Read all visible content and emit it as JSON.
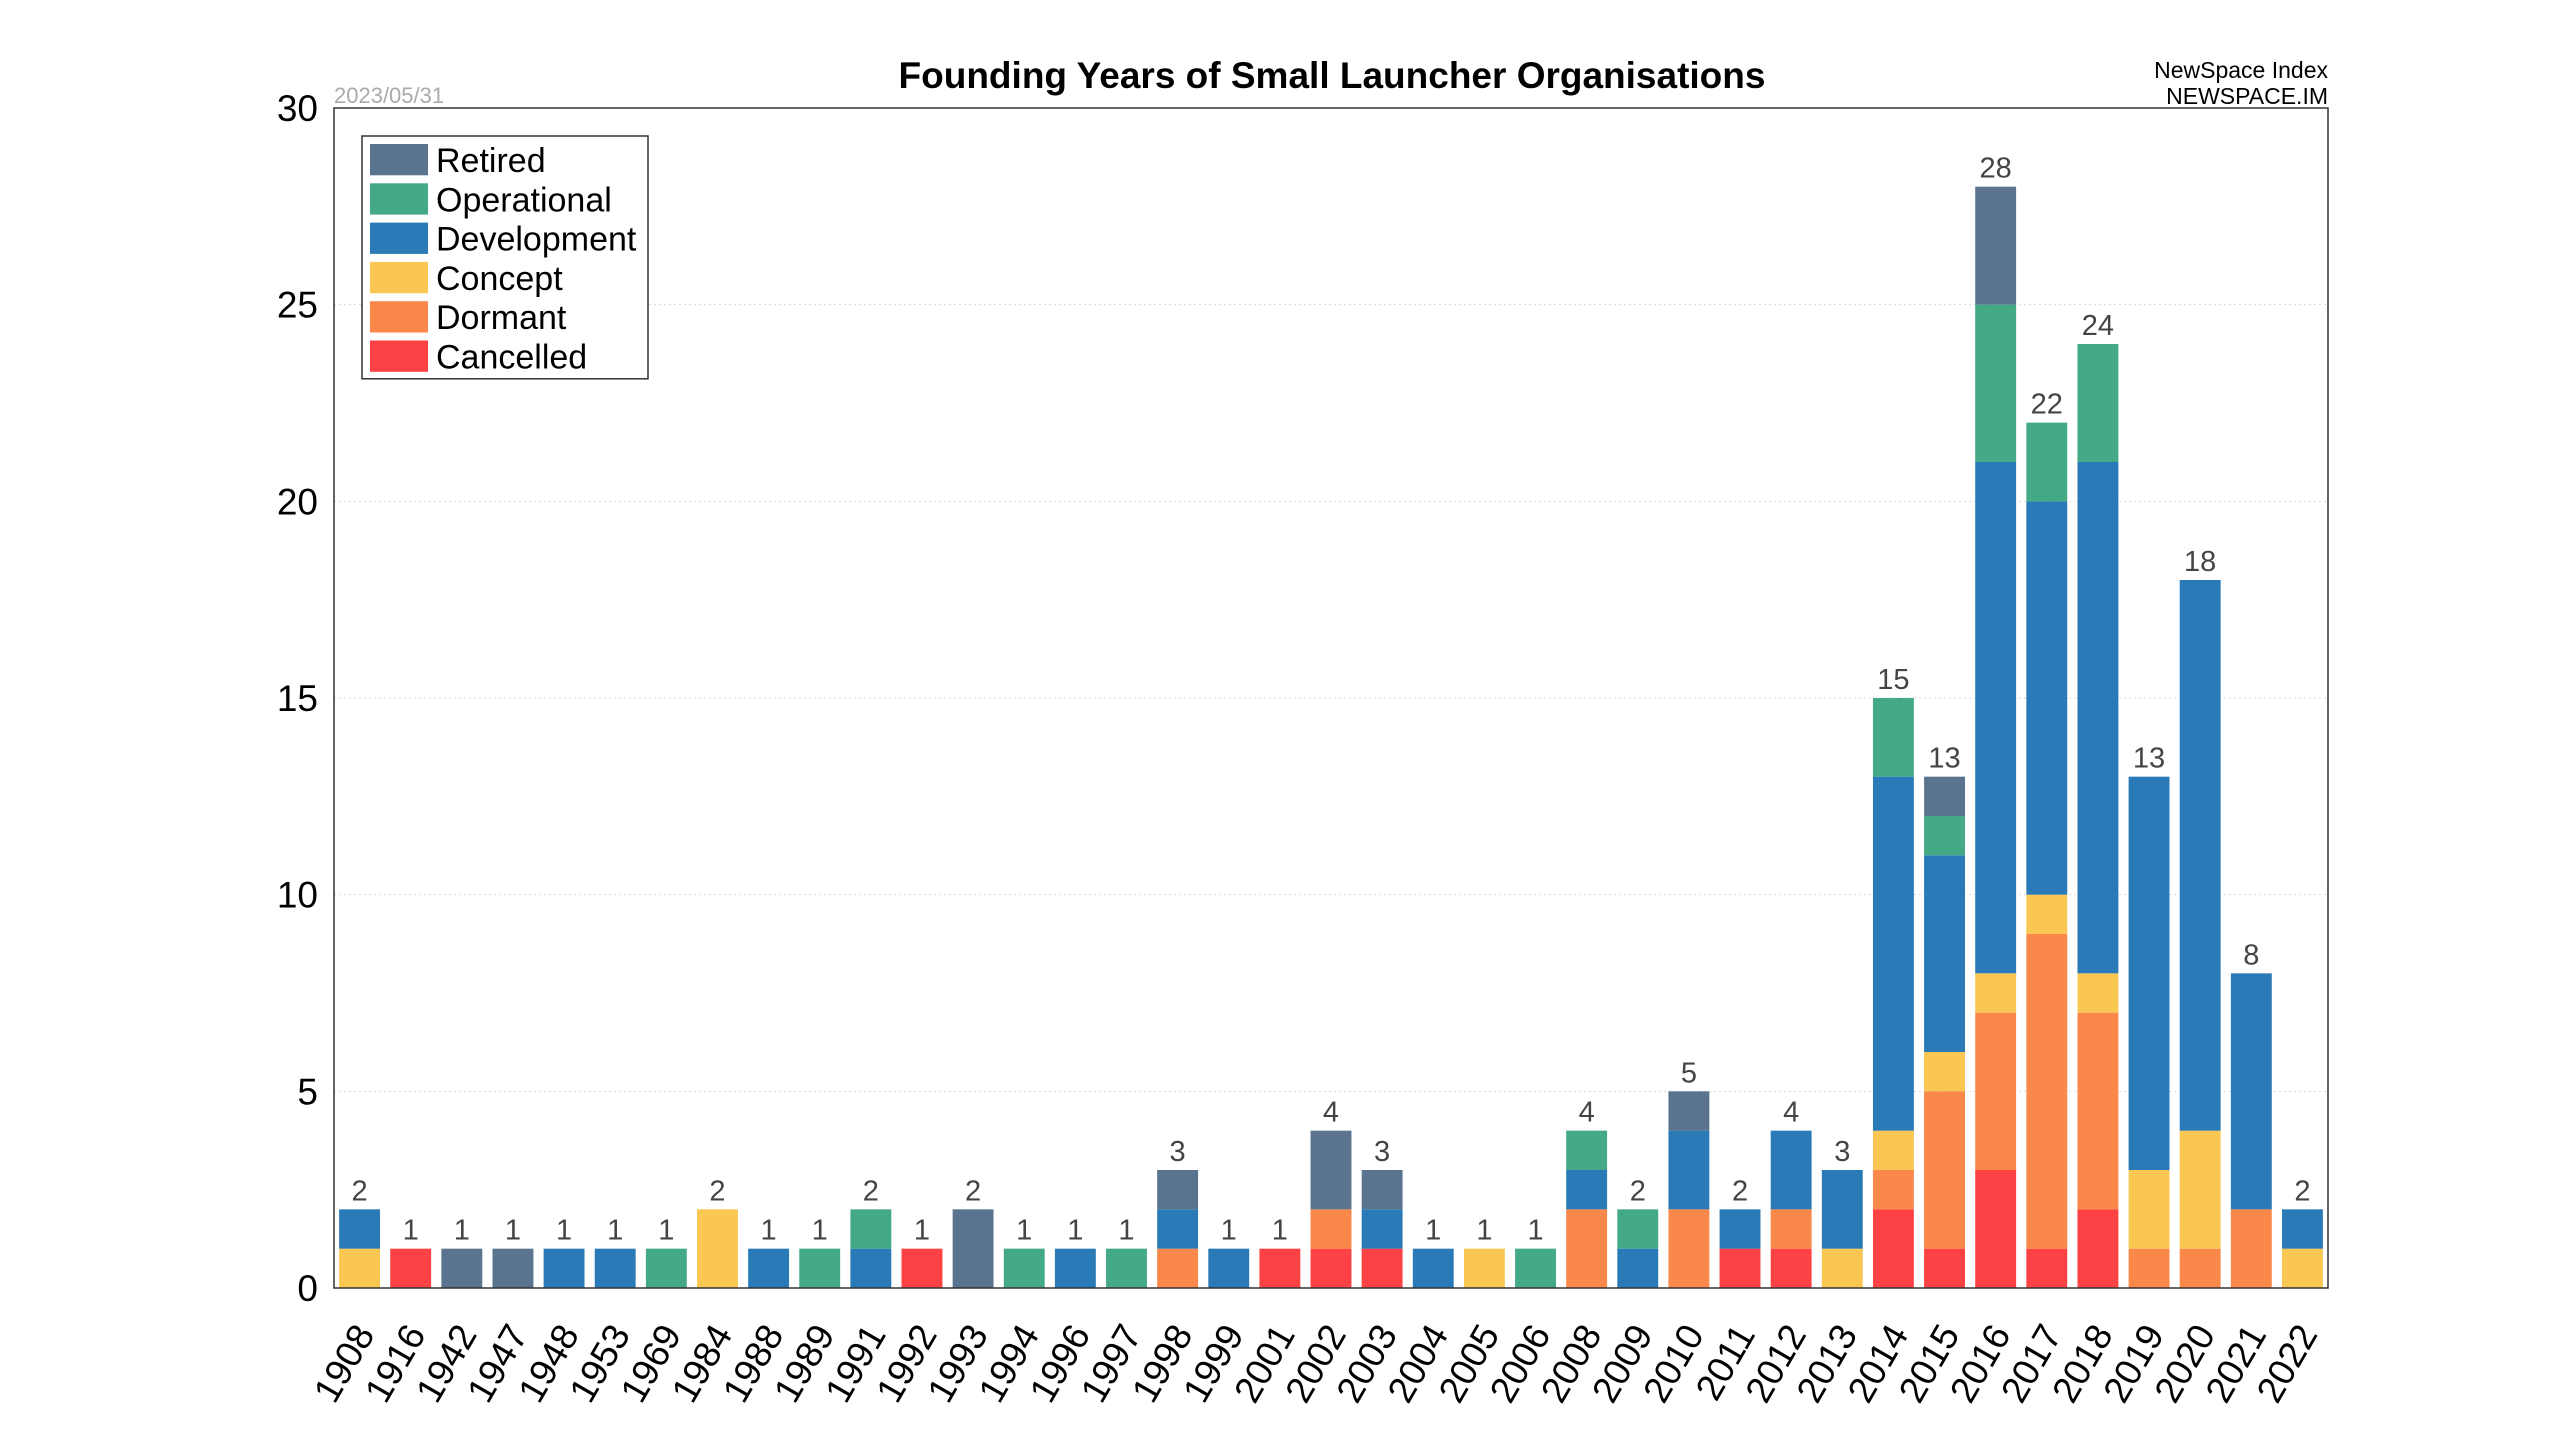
{
  "chart_data": {
    "type": "bar",
    "stacked": true,
    "title": "Founding Years of Small Launcher Organisations",
    "date_stamp": "2023/05/31",
    "source_name": "NewSpace Index",
    "source_url": "NEWSPACE.IM",
    "xlabel": "",
    "ylabel": "",
    "ylim": [
      0,
      30
    ],
    "yticks": [
      0,
      5,
      10,
      15,
      20,
      25,
      30
    ],
    "grid": "horizontal-dotted",
    "legend_position": "top-left",
    "categories": [
      "1908",
      "1916",
      "1942",
      "1947",
      "1948",
      "1953",
      "1969",
      "1984",
      "1988",
      "1989",
      "1991",
      "1992",
      "1993",
      "1994",
      "1996",
      "1997",
      "1998",
      "1999",
      "2001",
      "2002",
      "2003",
      "2004",
      "2005",
      "2006",
      "2008",
      "2009",
      "2010",
      "2011",
      "2012",
      "2013",
      "2014",
      "2015",
      "2016",
      "2017",
      "2018",
      "2019",
      "2020",
      "2021",
      "2022"
    ],
    "series": [
      {
        "name": "Cancelled",
        "color": "#fc4245",
        "values": [
          0,
          1,
          0,
          0,
          0,
          0,
          0,
          0,
          0,
          0,
          0,
          1,
          0,
          0,
          0,
          0,
          0,
          0,
          1,
          1,
          1,
          0,
          0,
          0,
          0,
          0,
          0,
          1,
          1,
          0,
          2,
          1,
          3,
          1,
          2,
          0,
          0,
          0,
          0
        ]
      },
      {
        "name": "Dormant",
        "color": "#f9884a",
        "values": [
          0,
          0,
          0,
          0,
          0,
          0,
          0,
          0,
          0,
          0,
          0,
          0,
          0,
          0,
          0,
          0,
          1,
          0,
          0,
          1,
          0,
          0,
          0,
          0,
          2,
          0,
          2,
          0,
          1,
          0,
          1,
          4,
          4,
          8,
          5,
          1,
          1,
          2,
          0
        ]
      },
      {
        "name": "Concept",
        "color": "#f9c752",
        "values": [
          1,
          0,
          0,
          0,
          0,
          0,
          0,
          2,
          0,
          0,
          0,
          0,
          0,
          0,
          0,
          0,
          0,
          0,
          0,
          0,
          0,
          0,
          1,
          0,
          0,
          0,
          0,
          0,
          0,
          1,
          1,
          1,
          1,
          1,
          1,
          2,
          3,
          0,
          1
        ]
      },
      {
        "name": "Development",
        "color": "#2a7ab7",
        "values": [
          1,
          0,
          0,
          0,
          1,
          1,
          0,
          0,
          1,
          0,
          1,
          0,
          0,
          0,
          1,
          0,
          1,
          1,
          0,
          0,
          1,
          1,
          0,
          0,
          1,
          1,
          2,
          1,
          2,
          2,
          9,
          5,
          13,
          10,
          13,
          10,
          14,
          6,
          1
        ]
      },
      {
        "name": "Operational",
        "color": "#44aa86",
        "values": [
          0,
          0,
          0,
          0,
          0,
          0,
          1,
          0,
          0,
          1,
          1,
          0,
          0,
          1,
          0,
          1,
          0,
          0,
          0,
          0,
          0,
          0,
          0,
          1,
          1,
          1,
          0,
          0,
          0,
          0,
          2,
          1,
          4,
          2,
          3,
          0,
          0,
          0,
          0
        ]
      },
      {
        "name": "Retired",
        "color": "#5a7490",
        "values": [
          0,
          0,
          1,
          1,
          0,
          0,
          0,
          0,
          0,
          0,
          0,
          0,
          2,
          0,
          0,
          0,
          1,
          0,
          0,
          2,
          1,
          0,
          0,
          0,
          0,
          0,
          1,
          0,
          0,
          0,
          0,
          1,
          3,
          0,
          0,
          0,
          0,
          0,
          0
        ]
      }
    ],
    "totals": [
      2,
      1,
      1,
      1,
      1,
      1,
      1,
      2,
      1,
      1,
      2,
      1,
      2,
      1,
      1,
      1,
      3,
      1,
      1,
      4,
      3,
      1,
      1,
      1,
      4,
      2,
      5,
      2,
      4,
      3,
      15,
      13,
      28,
      22,
      24,
      13,
      18,
      8,
      2
    ],
    "legend_order": [
      "Retired",
      "Operational",
      "Development",
      "Concept",
      "Dormant",
      "Cancelled"
    ]
  }
}
